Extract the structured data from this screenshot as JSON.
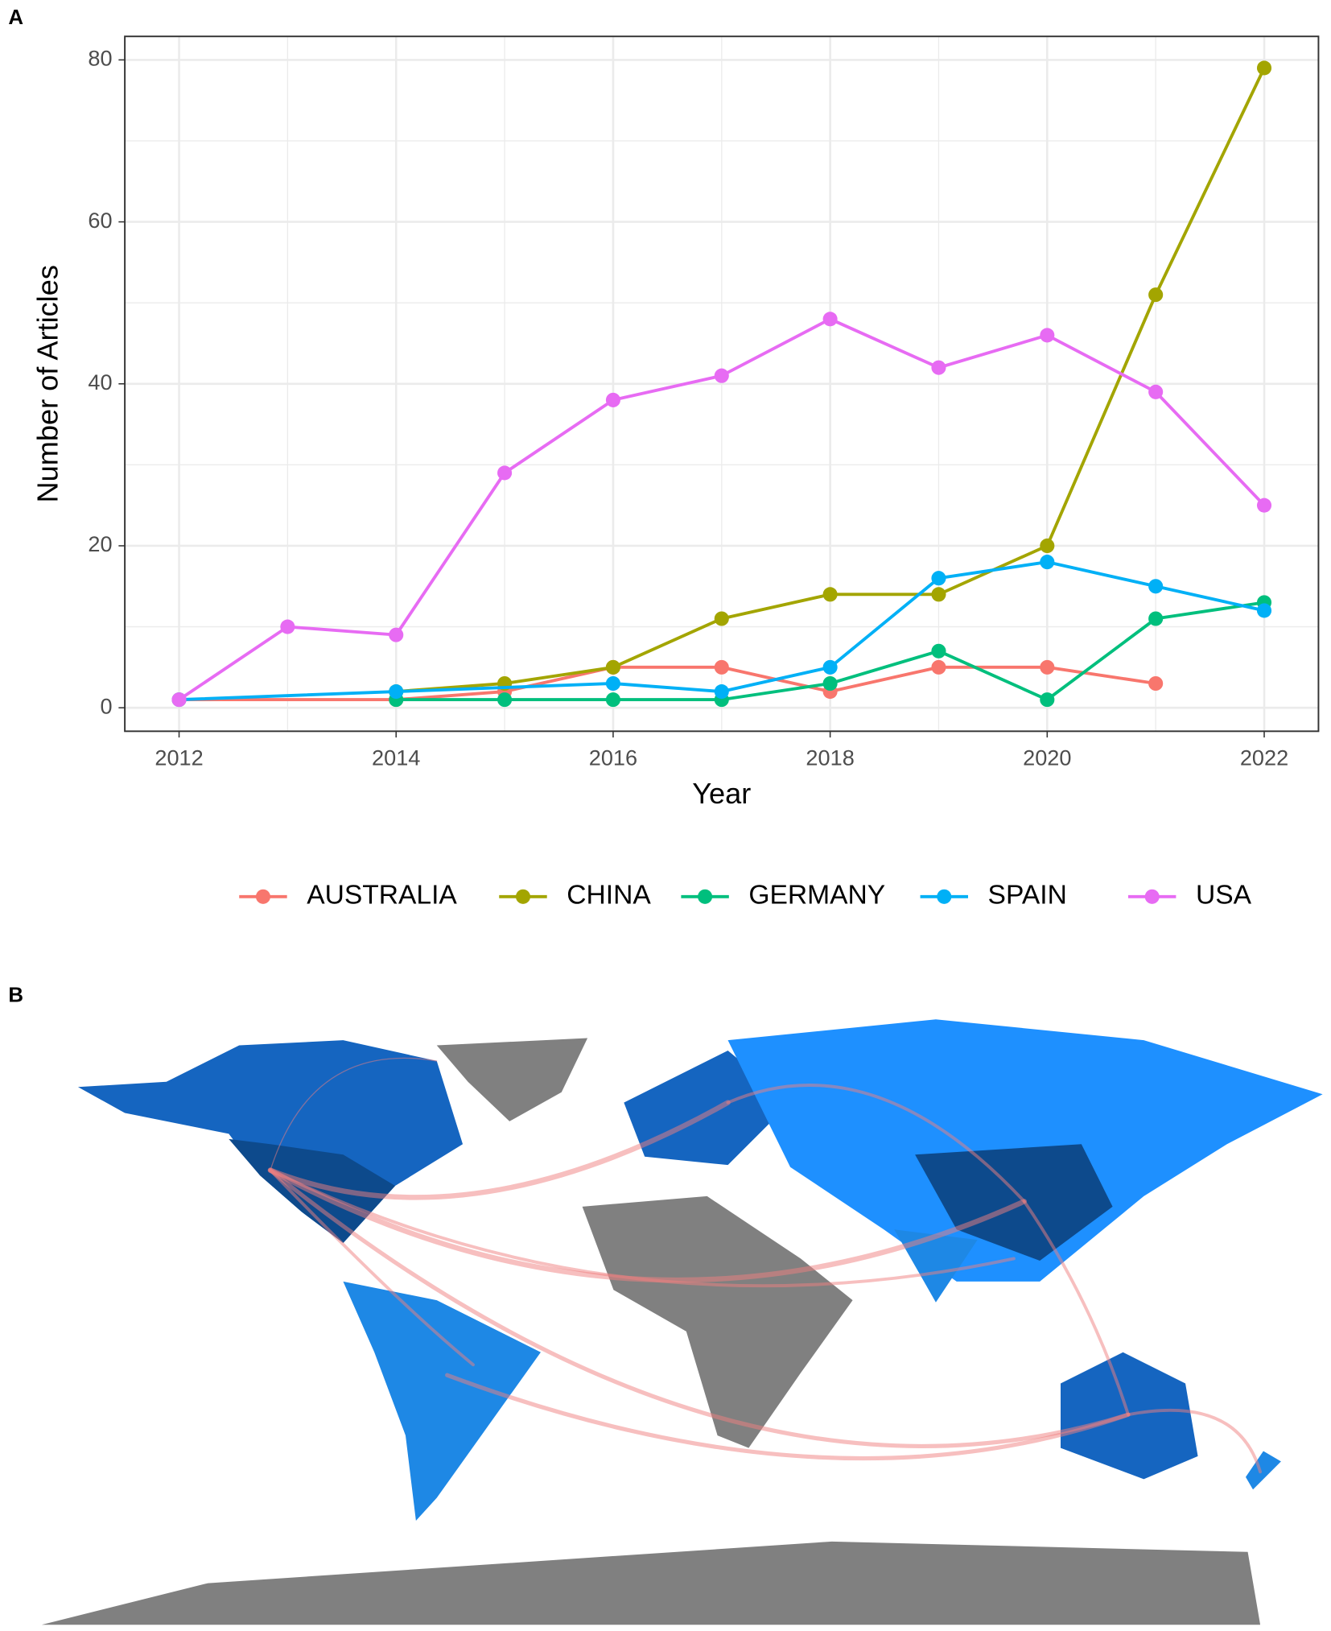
{
  "panel_a_label": "A",
  "panel_b_label": "B",
  "chart_data": {
    "type": "line",
    "x_label": "Year",
    "y_label": "Number of Articles",
    "xlim": [
      2011.5,
      2022.5
    ],
    "ylim": [
      -2.9,
      82.9
    ],
    "xticks": [
      2012,
      2014,
      2016,
      2018,
      2020,
      2022
    ],
    "yticks": [
      0,
      20,
      40,
      60,
      80
    ],
    "x_minor_ticks": [
      2013,
      2015,
      2017,
      2019,
      2021
    ],
    "y_minor_ticks": [
      10,
      30,
      50,
      70
    ],
    "grid": true,
    "legend": "bottom",
    "series": [
      {
        "name": "AUSTRALIA",
        "color": "#F8766D",
        "x": [
          2012,
          2014,
          2015,
          2016,
          2017,
          2018,
          2019,
          2020,
          2021
        ],
        "values": [
          1,
          1,
          2,
          5,
          5,
          2,
          5,
          5,
          3
        ]
      },
      {
        "name": "CHINA",
        "color": "#A3A500",
        "x": [
          2014,
          2015,
          2016,
          2017,
          2018,
          2019,
          2020,
          2021,
          2022
        ],
        "values": [
          2,
          3,
          5,
          11,
          14,
          14,
          20,
          51,
          79
        ]
      },
      {
        "name": "GERMANY",
        "color": "#00BF7D",
        "x": [
          2014,
          2015,
          2016,
          2017,
          2018,
          2019,
          2020,
          2021,
          2022
        ],
        "values": [
          1,
          1,
          1,
          1,
          3,
          7,
          1,
          11,
          13
        ]
      },
      {
        "name": "SPAIN",
        "color": "#00B0F6",
        "x": [
          2012,
          2014,
          2016,
          2017,
          2018,
          2019,
          2020,
          2021,
          2022
        ],
        "values": [
          1,
          2,
          3,
          2,
          5,
          16,
          18,
          15,
          12
        ]
      },
      {
        "name": "USA",
        "color": "#E76BF3",
        "x": [
          2012,
          2013,
          2014,
          2015,
          2016,
          2017,
          2018,
          2019,
          2020,
          2021,
          2022
        ],
        "values": [
          1,
          10,
          9,
          29,
          38,
          41,
          48,
          42,
          46,
          39,
          25
        ]
      }
    ]
  }
}
